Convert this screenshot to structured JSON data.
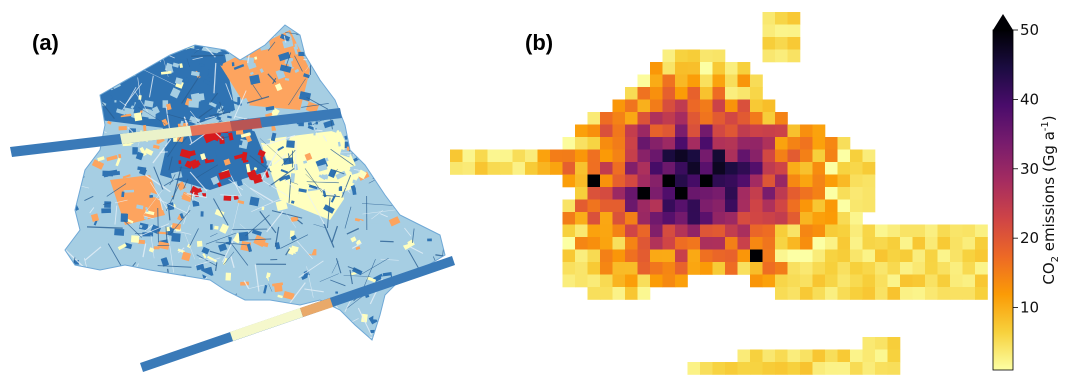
{
  "panels": {
    "a": {
      "label": "(a)"
    },
    "b": {
      "label": "(b)"
    }
  },
  "colorbar": {
    "label_prefix": "CO",
    "label_sub": "2",
    "label_mid": " emissions (Gg a",
    "label_sup": "-1",
    "label_suffix": ")",
    "min": 1,
    "max": 50,
    "extend": "max",
    "ticks": [
      {
        "value": 10,
        "label": "10"
      },
      {
        "value": 20,
        "label": "20"
      },
      {
        "value": 30,
        "label": "30"
      },
      {
        "value": 40,
        "label": "40"
      },
      {
        "value": 50,
        "label": "50"
      }
    ],
    "colormap": [
      "#fcffa4",
      "#f7d13d",
      "#fb9b06",
      "#ed6925",
      "#cf4446",
      "#a52c60",
      "#781c6d",
      "#4a0c6b",
      "#1b0c41",
      "#000004"
    ]
  },
  "colors": {
    "district_dark": "#2f73b3",
    "district_light": "#a6cee3",
    "district_orange": "#fda45f",
    "district_pale": "#ffffbf",
    "district_red": "#d7191c"
  }
}
